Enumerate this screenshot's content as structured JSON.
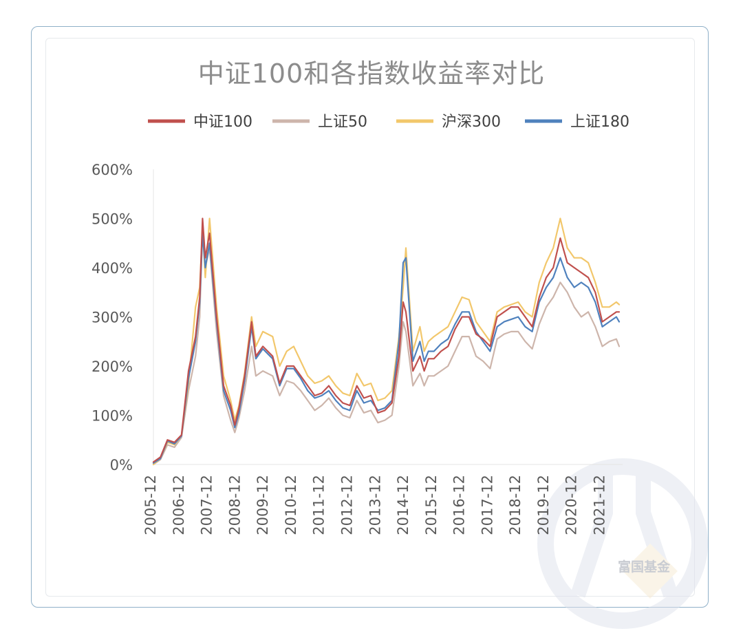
{
  "watermark": {
    "text": "富国基金",
    "icon": "fuguo-logo-icon"
  },
  "chart_data": {
    "type": "line",
    "title": "中证100和各指数收益率对比",
    "xlabel": "",
    "ylabel": "",
    "ylim": [
      0,
      600
    ],
    "y_ticks": [
      "0%",
      "100%",
      "200%",
      "300%",
      "400%",
      "500%",
      "600%"
    ],
    "x_ticks": [
      "2005-12",
      "2006-12",
      "2007-12",
      "2008-12",
      "2009-12",
      "2010-12",
      "2011-12",
      "2012-12",
      "2013-12",
      "2014-12",
      "2015-12",
      "2016-12",
      "2017-12",
      "2018-12",
      "2019-12",
      "2020-12",
      "2021-12"
    ],
    "x": [
      2005.95,
      2006.2,
      2006.45,
      2006.7,
      2006.95,
      2007.2,
      2007.45,
      2007.6,
      2007.7,
      2007.8,
      2007.95,
      2008.2,
      2008.45,
      2008.7,
      2008.85,
      2009.0,
      2009.2,
      2009.45,
      2009.6,
      2009.85,
      2010.2,
      2010.45,
      2010.7,
      2010.95,
      2011.2,
      2011.45,
      2011.7,
      2011.95,
      2012.2,
      2012.45,
      2012.7,
      2012.95,
      2013.2,
      2013.45,
      2013.7,
      2013.95,
      2014.2,
      2014.45,
      2014.7,
      2014.85,
      2014.95,
      2015.2,
      2015.45,
      2015.6,
      2015.75,
      2015.95,
      2016.2,
      2016.45,
      2016.7,
      2016.95,
      2017.2,
      2017.45,
      2017.7,
      2017.95,
      2018.2,
      2018.45,
      2018.7,
      2018.95,
      2019.2,
      2019.45,
      2019.7,
      2019.95,
      2020.2,
      2020.45,
      2020.7,
      2020.95,
      2021.2,
      2021.45,
      2021.7,
      2021.95,
      2022.2,
      2022.45,
      2022.55
    ],
    "series": [
      {
        "name": "中证100",
        "color": "#c0504d",
        "values": [
          5,
          15,
          50,
          45,
          60,
          190,
          260,
          340,
          500,
          420,
          470,
          300,
          160,
          120,
          80,
          115,
          180,
          290,
          220,
          240,
          220,
          165,
          200,
          200,
          180,
          160,
          140,
          145,
          160,
          140,
          125,
          120,
          160,
          135,
          140,
          105,
          110,
          125,
          220,
          330,
          310,
          190,
          220,
          190,
          215,
          215,
          230,
          240,
          275,
          300,
          300,
          265,
          255,
          240,
          300,
          310,
          320,
          320,
          300,
          280,
          340,
          380,
          400,
          460,
          410,
          400,
          390,
          380,
          350,
          290,
          300,
          310,
          310
        ]
      },
      {
        "name": "上证50",
        "color": "#cdb5ab",
        "values": [
          0,
          10,
          40,
          35,
          55,
          150,
          220,
          300,
          480,
          400,
          440,
          270,
          140,
          90,
          65,
          95,
          150,
          240,
          180,
          190,
          180,
          140,
          170,
          165,
          150,
          130,
          110,
          120,
          135,
          115,
          100,
          95,
          130,
          105,
          110,
          85,
          90,
          100,
          200,
          290,
          270,
          160,
          185,
          160,
          180,
          180,
          190,
          200,
          230,
          260,
          260,
          220,
          210,
          195,
          255,
          265,
          270,
          270,
          250,
          235,
          285,
          320,
          340,
          370,
          350,
          320,
          300,
          310,
          280,
          240,
          250,
          255,
          240
        ]
      },
      {
        "name": "沪深300",
        "color": "#f2c76b",
        "values": [
          0,
          12,
          45,
          40,
          58,
          165,
          320,
          360,
          480,
          380,
          500,
          320,
          180,
          130,
          90,
          120,
          185,
          300,
          240,
          270,
          260,
          200,
          230,
          240,
          210,
          180,
          165,
          170,
          180,
          160,
          145,
          140,
          185,
          160,
          165,
          130,
          135,
          150,
          260,
          360,
          440,
          230,
          280,
          230,
          250,
          260,
          270,
          280,
          310,
          340,
          335,
          290,
          270,
          250,
          310,
          320,
          325,
          330,
          310,
          300,
          370,
          410,
          440,
          500,
          440,
          420,
          420,
          410,
          370,
          320,
          320,
          330,
          325
        ]
      },
      {
        "name": "上证180",
        "color": "#4f81bd",
        "values": [
          3,
          12,
          48,
          42,
          58,
          175,
          250,
          330,
          470,
          400,
          450,
          290,
          150,
          110,
          75,
          105,
          170,
          280,
          215,
          235,
          215,
          160,
          195,
          195,
          175,
          150,
          135,
          140,
          150,
          130,
          115,
          110,
          150,
          125,
          130,
          110,
          115,
          130,
          250,
          410,
          420,
          210,
          250,
          210,
          230,
          230,
          245,
          255,
          285,
          310,
          310,
          270,
          250,
          230,
          280,
          290,
          295,
          300,
          280,
          270,
          330,
          360,
          380,
          420,
          380,
          360,
          370,
          360,
          330,
          280,
          290,
          300,
          290
        ]
      }
    ],
    "legend_position": "top",
    "grid": false
  }
}
